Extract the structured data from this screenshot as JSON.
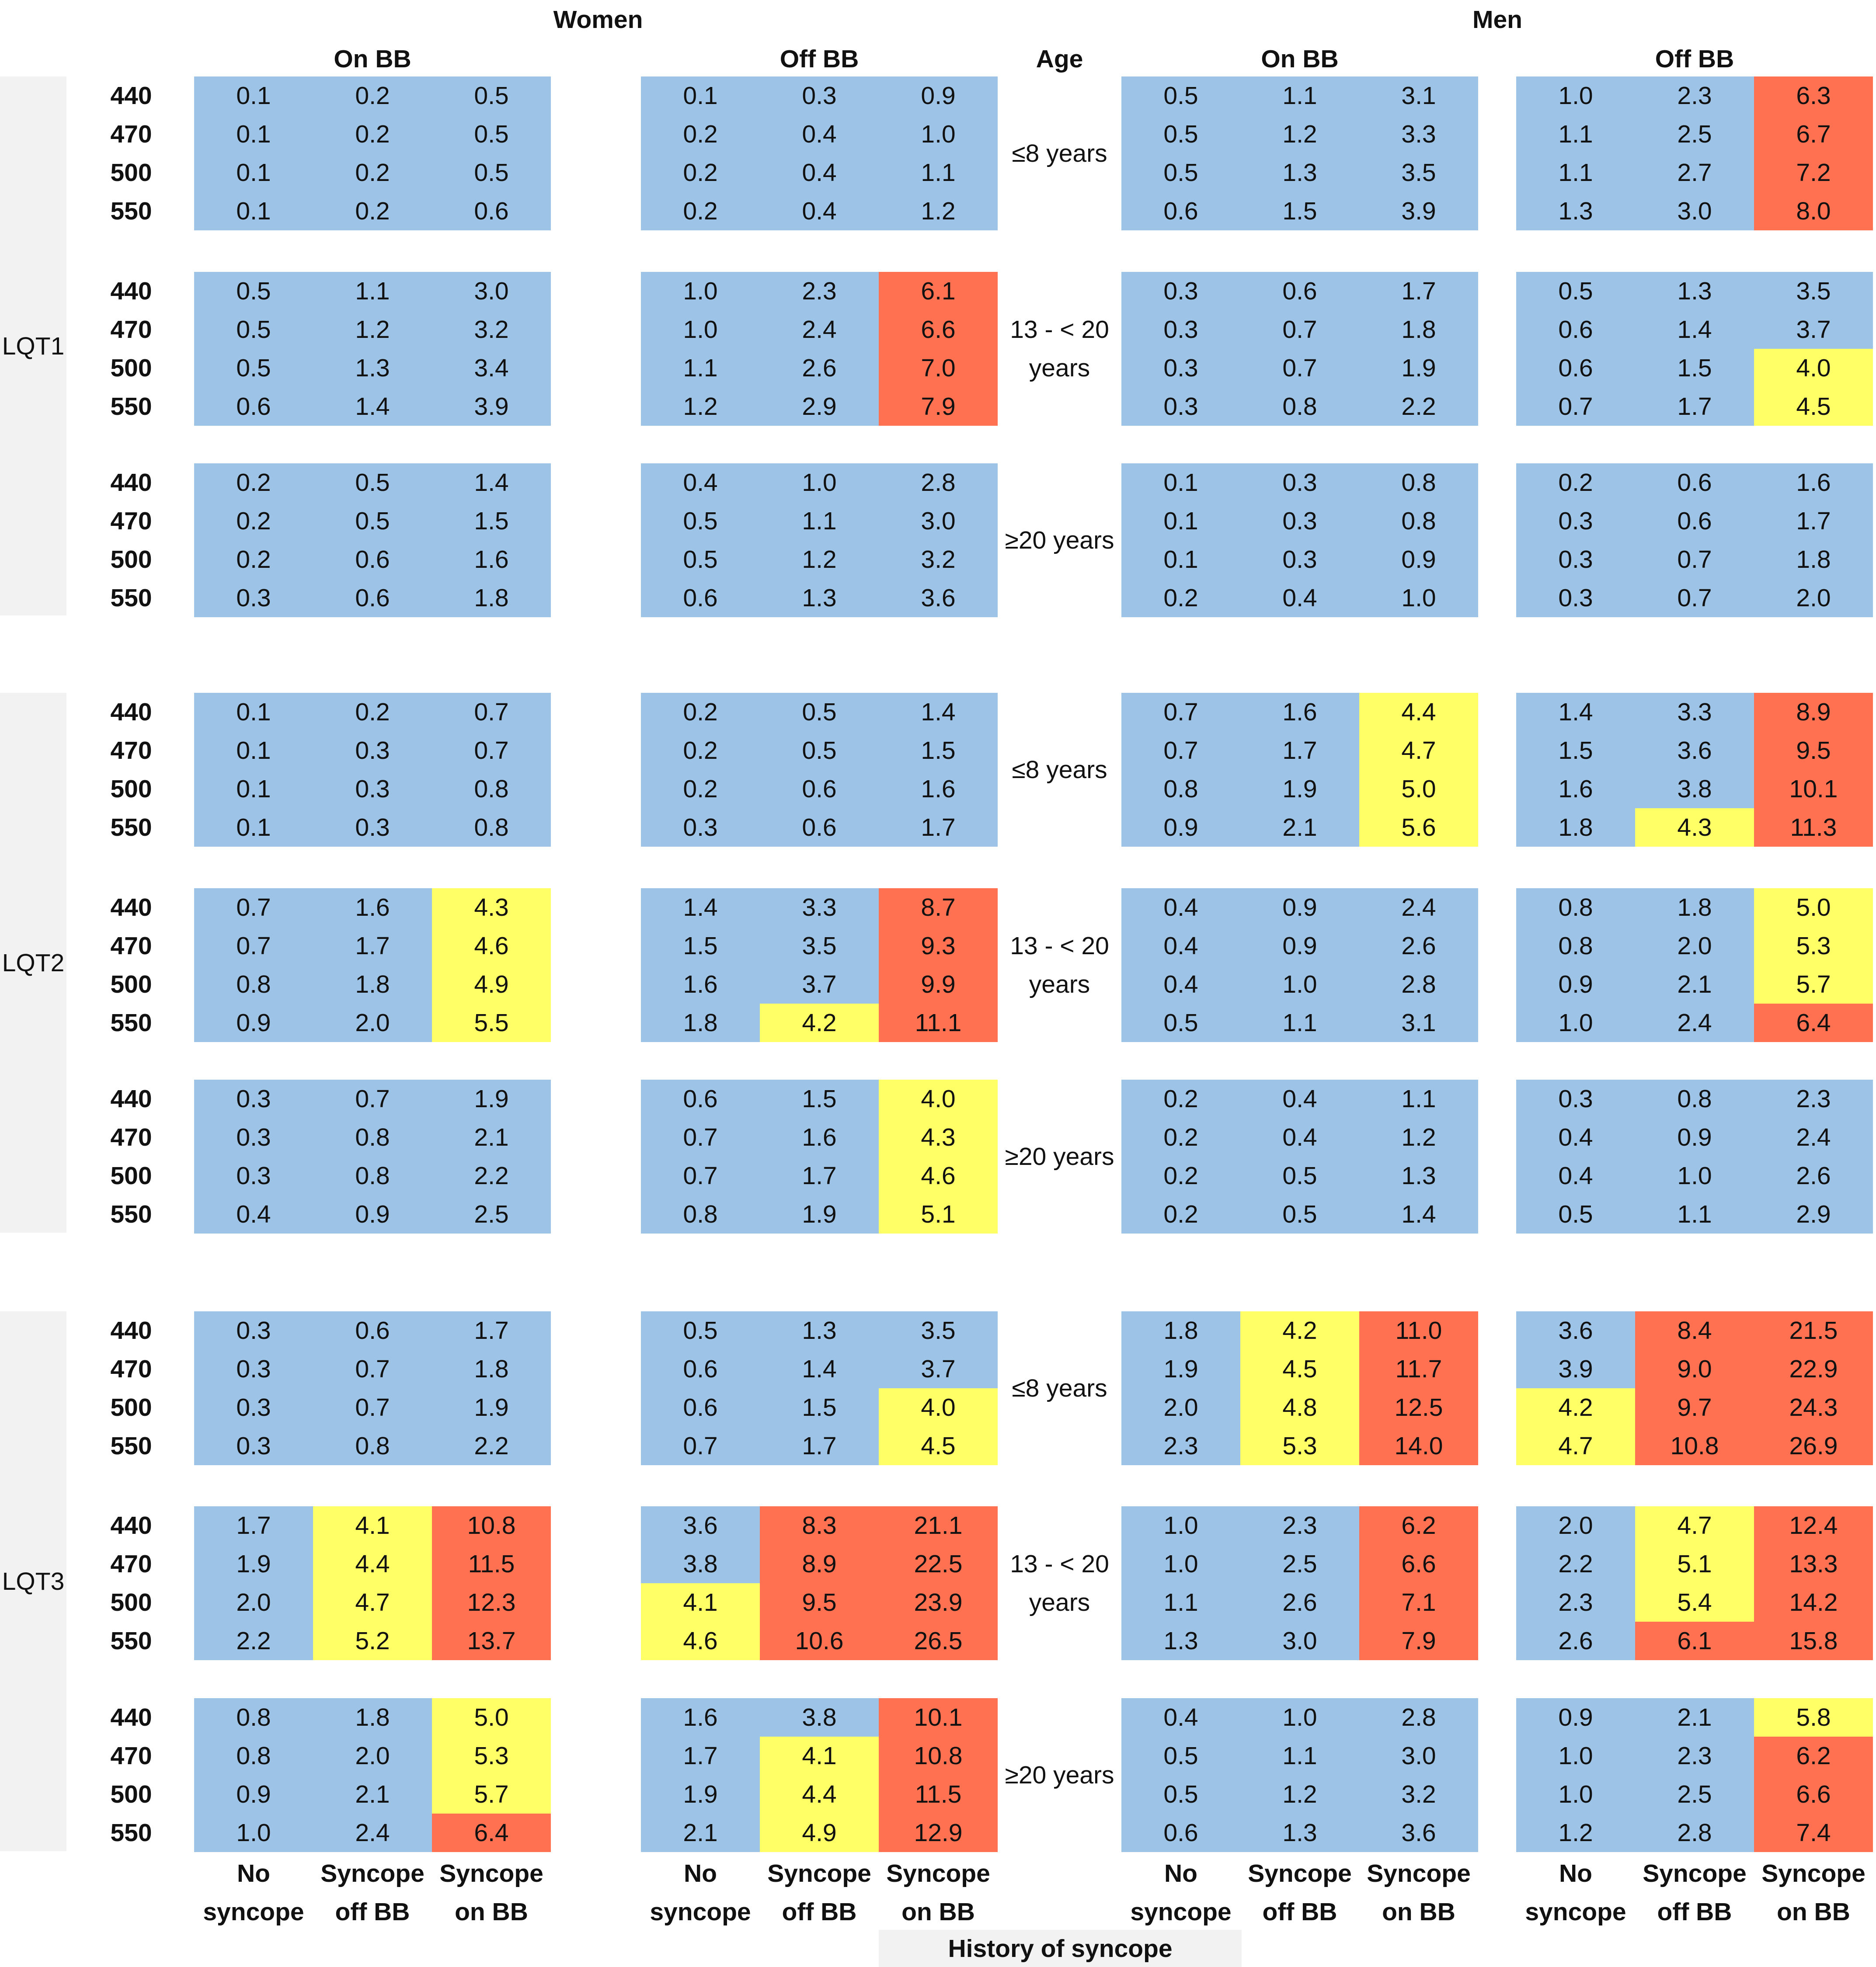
{
  "chart_data": {
    "type": "table",
    "header": {
      "sexes": [
        "Women",
        "Men"
      ],
      "treatments": [
        "On BB",
        "Off BB",
        "On BB",
        "Off BB"
      ],
      "age_header": "Age",
      "col_labels": [
        [
          "No",
          "syncope"
        ],
        [
          "Syncope",
          "off BB"
        ],
        [
          "Syncope",
          "on BB"
        ],
        [
          "No",
          "syncope"
        ],
        [
          "Syncope",
          "off BB"
        ],
        [
          "Syncope",
          "on BB"
        ],
        [
          "No",
          "syncope"
        ],
        [
          "Syncope",
          "off BB"
        ],
        [
          "Syncope",
          "on BB"
        ],
        [
          "No",
          "syncope"
        ],
        [
          "Syncope",
          "off BB"
        ],
        [
          "Syncope",
          "on BB"
        ]
      ],
      "footer": "History of syncope"
    },
    "genotypes": [
      "LQT1",
      "LQT2",
      "LQT3"
    ],
    "age_labels": [
      [
        "≤8 years"
      ],
      [
        "13 - < 20",
        "years"
      ],
      [
        "≥20 years"
      ]
    ],
    "qtc": [
      "440",
      "470",
      "500",
      "550"
    ],
    "colors": {
      "b": "#9DC3E6",
      "y": "#FFFF66",
      "r": "#FF7150"
    },
    "blocks": [
      {
        "values": [
          [
            0.1,
            0.2,
            0.5,
            0.1,
            0.3,
            0.9,
            0.5,
            1.1,
            3.1,
            1.0,
            2.3,
            6.3
          ],
          [
            0.1,
            0.2,
            0.5,
            0.2,
            0.4,
            1.0,
            0.5,
            1.2,
            3.3,
            1.1,
            2.5,
            6.7
          ],
          [
            0.1,
            0.2,
            0.5,
            0.2,
            0.4,
            1.1,
            0.5,
            1.3,
            3.5,
            1.1,
            2.7,
            7.2
          ],
          [
            0.1,
            0.2,
            0.6,
            0.2,
            0.4,
            1.2,
            0.6,
            1.5,
            3.9,
            1.3,
            3.0,
            8.0
          ]
        ],
        "colors": [
          "bbbbbbbbbbbr",
          "bbbbbbbbbbbr",
          "bbbbbbbbbbbr",
          "bbbbbbbbbbbr"
        ]
      },
      {
        "values": [
          [
            0.5,
            1.1,
            3.0,
            1.0,
            2.3,
            6.1,
            0.3,
            0.6,
            1.7,
            0.5,
            1.3,
            3.5
          ],
          [
            0.5,
            1.2,
            3.2,
            1.0,
            2.4,
            6.6,
            0.3,
            0.7,
            1.8,
            0.6,
            1.4,
            3.7
          ],
          [
            0.5,
            1.3,
            3.4,
            1.1,
            2.6,
            7.0,
            0.3,
            0.7,
            1.9,
            0.6,
            1.5,
            4.0
          ],
          [
            0.6,
            1.4,
            3.9,
            1.2,
            2.9,
            7.9,
            0.3,
            0.8,
            2.2,
            0.7,
            1.7,
            4.5
          ]
        ],
        "colors": [
          "bbbbbrbbbbbb",
          "bbbbbrbbbbbb",
          "bbbbbrbbbbby",
          "bbbbbrbbbbby"
        ]
      },
      {
        "values": [
          [
            0.2,
            0.5,
            1.4,
            0.4,
            1.0,
            2.8,
            0.1,
            0.3,
            0.8,
            0.2,
            0.6,
            1.6
          ],
          [
            0.2,
            0.5,
            1.5,
            0.5,
            1.1,
            3.0,
            0.1,
            0.3,
            0.8,
            0.3,
            0.6,
            1.7
          ],
          [
            0.2,
            0.6,
            1.6,
            0.5,
            1.2,
            3.2,
            0.1,
            0.3,
            0.9,
            0.3,
            0.7,
            1.8
          ],
          [
            0.3,
            0.6,
            1.8,
            0.6,
            1.3,
            3.6,
            0.2,
            0.4,
            1.0,
            0.3,
            0.7,
            2.0
          ]
        ],
        "colors": [
          "bbbbbbbbbbbb",
          "bbbbbbbbbbbb",
          "bbbbbbbbbbbb",
          "bbbbbbbbbbbb"
        ]
      },
      {
        "values": [
          [
            0.1,
            0.2,
            0.7,
            0.2,
            0.5,
            1.4,
            0.7,
            1.6,
            4.4,
            1.4,
            3.3,
            8.9
          ],
          [
            0.1,
            0.3,
            0.7,
            0.2,
            0.5,
            1.5,
            0.7,
            1.7,
            4.7,
            1.5,
            3.6,
            9.5
          ],
          [
            0.1,
            0.3,
            0.8,
            0.2,
            0.6,
            1.6,
            0.8,
            1.9,
            5.0,
            1.6,
            3.8,
            10.1
          ],
          [
            0.1,
            0.3,
            0.8,
            0.3,
            0.6,
            1.7,
            0.9,
            2.1,
            5.6,
            1.8,
            4.3,
            11.3
          ]
        ],
        "colors": [
          "bbbbbbbbybbr",
          "bbbbbbbbybbr",
          "bbbbbbbbybbr",
          "bbbbbbbbybyr"
        ]
      },
      {
        "values": [
          [
            0.7,
            1.6,
            4.3,
            1.4,
            3.3,
            8.7,
            0.4,
            0.9,
            2.4,
            0.8,
            1.8,
            5.0
          ],
          [
            0.7,
            1.7,
            4.6,
            1.5,
            3.5,
            9.3,
            0.4,
            0.9,
            2.6,
            0.8,
            2.0,
            5.3
          ],
          [
            0.8,
            1.8,
            4.9,
            1.6,
            3.7,
            9.9,
            0.4,
            1.0,
            2.8,
            0.9,
            2.1,
            5.7
          ],
          [
            0.9,
            2.0,
            5.5,
            1.8,
            4.2,
            11.1,
            0.5,
            1.1,
            3.1,
            1.0,
            2.4,
            6.4
          ]
        ],
        "colors": [
          "bbybbrbbbbby",
          "bbybbrbbbbby",
          "bbybbrbbbbby",
          "bbybyrbbbbbr"
        ]
      },
      {
        "values": [
          [
            0.3,
            0.7,
            1.9,
            0.6,
            1.5,
            4.0,
            0.2,
            0.4,
            1.1,
            0.3,
            0.8,
            2.3
          ],
          [
            0.3,
            0.8,
            2.1,
            0.7,
            1.6,
            4.3,
            0.2,
            0.4,
            1.2,
            0.4,
            0.9,
            2.4
          ],
          [
            0.3,
            0.8,
            2.2,
            0.7,
            1.7,
            4.6,
            0.2,
            0.5,
            1.3,
            0.4,
            1.0,
            2.6
          ],
          [
            0.4,
            0.9,
            2.5,
            0.8,
            1.9,
            5.1,
            0.2,
            0.5,
            1.4,
            0.5,
            1.1,
            2.9
          ]
        ],
        "colors": [
          "bbbbbybbbbbb",
          "bbbbbybbbbbb",
          "bbbbbybbbbbb",
          "bbbbbybbbbbb"
        ]
      },
      {
        "values": [
          [
            0.3,
            0.6,
            1.7,
            0.5,
            1.3,
            3.5,
            1.8,
            4.2,
            11.0,
            3.6,
            8.4,
            21.5
          ],
          [
            0.3,
            0.7,
            1.8,
            0.6,
            1.4,
            3.7,
            1.9,
            4.5,
            11.7,
            3.9,
            9.0,
            22.9
          ],
          [
            0.3,
            0.7,
            1.9,
            0.6,
            1.5,
            4.0,
            2.0,
            4.8,
            12.5,
            4.2,
            9.7,
            24.3
          ],
          [
            0.3,
            0.8,
            2.2,
            0.7,
            1.7,
            4.5,
            2.3,
            5.3,
            14.0,
            4.7,
            10.8,
            26.9
          ]
        ],
        "colors": [
          "bbbbbbbyrbrr",
          "bbbbbbbyrbrr",
          "bbbbbybyryrr",
          "bbbbbybyryrr"
        ]
      },
      {
        "values": [
          [
            1.7,
            4.1,
            10.8,
            3.6,
            8.3,
            21.1,
            1.0,
            2.3,
            6.2,
            2.0,
            4.7,
            12.4
          ],
          [
            1.9,
            4.4,
            11.5,
            3.8,
            8.9,
            22.5,
            1.0,
            2.5,
            6.6,
            2.2,
            5.1,
            13.3
          ],
          [
            2.0,
            4.7,
            12.3,
            4.1,
            9.5,
            23.9,
            1.1,
            2.6,
            7.1,
            2.3,
            5.4,
            14.2
          ],
          [
            2.2,
            5.2,
            13.7,
            4.6,
            10.6,
            26.5,
            1.3,
            3.0,
            7.9,
            2.6,
            6.1,
            15.8
          ]
        ],
        "colors": [
          "byrbrrbbrbyr",
          "byrbrrbbrbyr",
          "byryrrbbrbyr",
          "byryrrbbrbrr"
        ]
      },
      {
        "values": [
          [
            0.8,
            1.8,
            5.0,
            1.6,
            3.8,
            10.1,
            0.4,
            1.0,
            2.8,
            0.9,
            2.1,
            5.8
          ],
          [
            0.8,
            2.0,
            5.3,
            1.7,
            4.1,
            10.8,
            0.5,
            1.1,
            3.0,
            1.0,
            2.3,
            6.2
          ],
          [
            0.9,
            2.1,
            5.7,
            1.9,
            4.4,
            11.5,
            0.5,
            1.2,
            3.2,
            1.0,
            2.5,
            6.6
          ],
          [
            1.0,
            2.4,
            6.4,
            2.1,
            4.9,
            12.9,
            0.6,
            1.3,
            3.6,
            1.2,
            2.8,
            7.4
          ]
        ],
        "colors": [
          "bbybbrbbbbby",
          "bbybyrbbbbbr",
          "bbybyrbbbbbr",
          "bbrbyrbbbbbr"
        ]
      }
    ]
  }
}
